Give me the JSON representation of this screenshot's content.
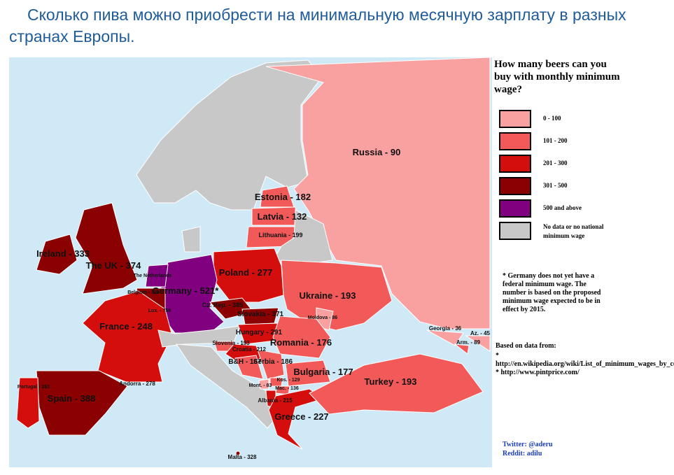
{
  "header": {
    "title": "Сколько пива можно приобрести на минимальную месячную зарплату в разных странах Европы."
  },
  "map": {
    "labels": [
      "Russia - 90",
      "Estonia - 182",
      "Latvia - 132",
      "Lithuania - 199",
      "Ireland - 333",
      "The UK - 374",
      "Poland - 277",
      "The Netherlands",
      "Germany - 521*",
      "Belgium - 328",
      "Lux. - 759",
      "Cz. Rep. - 385",
      "Slovakia - 371",
      "Ukraine - 193",
      "Moldova - 86",
      "France - 248",
      "Hungary - 291",
      "Slovenia - 193",
      "Croatia - 212",
      "Romania - 176",
      "Georgia - 36",
      "Az. - 45",
      "Arm. - 89",
      "B&H - 167",
      "Serbia - 186",
      "Bulgaria - 177",
      "Mont. - 83",
      "Kos. - 129",
      "Mac. - 136",
      "Albania - 215",
      "Portugal - 281",
      "Andorra - 278",
      "Spain - 388",
      "Turkey - 193",
      "Greece - 227",
      "Malta - 328"
    ]
  },
  "legend": {
    "title": "How many beers can you buy with monthly minimum wage?",
    "items": [
      {
        "label": "0 - 100",
        "color": "#f9a0a0"
      },
      {
        "label": "101 - 200",
        "color": "#f25a5a"
      },
      {
        "label": "201 - 300",
        "color": "#d40d0d"
      },
      {
        "label": "301 - 500",
        "color": "#8b0000"
      },
      {
        "label": "500 and above",
        "color": "#800080"
      },
      {
        "label": "No data or no national minimum wage",
        "color": "#c8c8c8"
      }
    ]
  },
  "footnote": "* Germany does not yet have a federal minimum wage. The number is based on the proposed minimum wage expected to be in effect by 2015.",
  "sources": {
    "title": "Based on data from:",
    "lines": [
      "* http://en.wikipedia.org/wiki/List_of_minimum_wages_by_country",
      "* http://www.pintprice.com/"
    ]
  },
  "credits": [
    "Twitter: @aderu",
    "Reddit: adilu"
  ]
}
